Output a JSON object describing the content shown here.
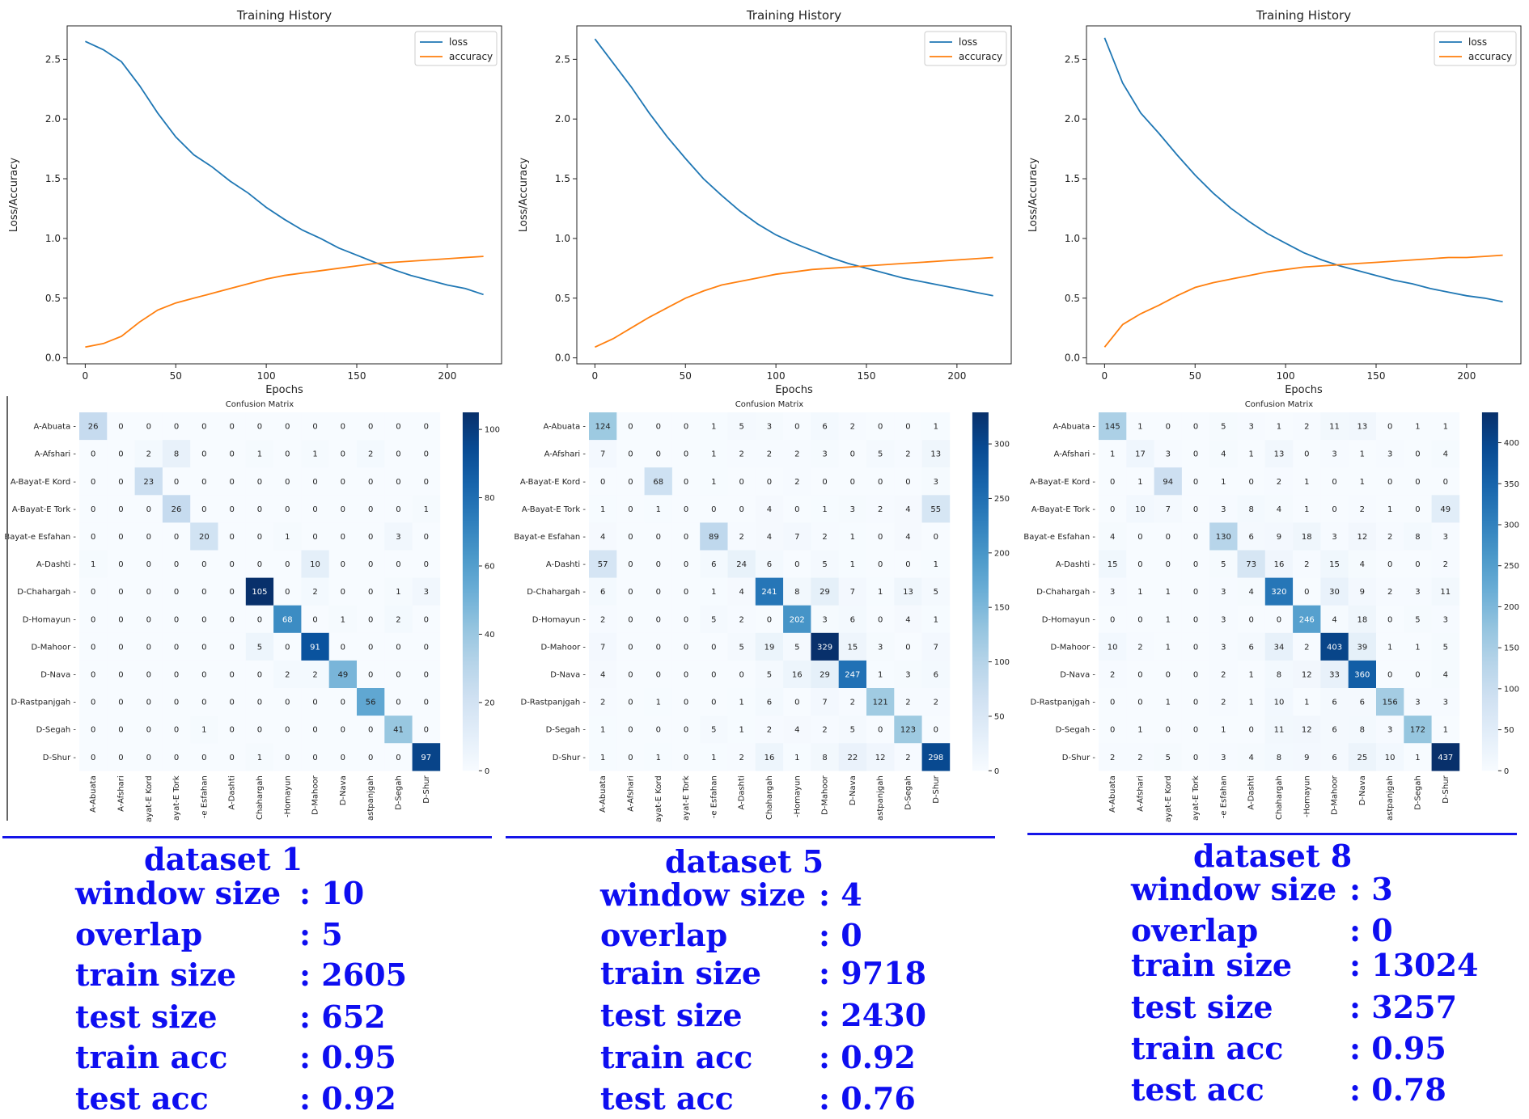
{
  "chart_data": [
    {
      "type": "line",
      "title": "Training History",
      "xlabel": "Epochs",
      "ylabel": "Loss/Accuracy",
      "xlim": [
        -10,
        230
      ],
      "ylim": [
        -0.05,
        2.78
      ],
      "xticks": [
        0,
        50,
        100,
        150,
        200
      ],
      "yticks": [
        0.0,
        0.5,
        1.0,
        1.5,
        2.0,
        2.5
      ],
      "legend": "top-right",
      "colors": [
        "#1f77b4",
        "#ff7f0e"
      ],
      "series": [
        {
          "name": "loss",
          "x": [
            0,
            10,
            20,
            30,
            40,
            50,
            60,
            70,
            80,
            90,
            100,
            110,
            120,
            130,
            140,
            150,
            160,
            170,
            180,
            190,
            200,
            210,
            220
          ],
          "values": [
            2.65,
            2.58,
            2.48,
            2.28,
            2.05,
            1.85,
            1.7,
            1.6,
            1.48,
            1.38,
            1.26,
            1.16,
            1.07,
            1.0,
            0.92,
            0.86,
            0.8,
            0.74,
            0.69,
            0.65,
            0.61,
            0.58,
            0.53
          ]
        },
        {
          "name": "accuracy",
          "x": [
            0,
            10,
            20,
            30,
            40,
            50,
            60,
            70,
            80,
            90,
            100,
            110,
            120,
            130,
            140,
            150,
            160,
            170,
            180,
            190,
            200,
            210,
            220
          ],
          "values": [
            0.09,
            0.12,
            0.18,
            0.3,
            0.4,
            0.46,
            0.5,
            0.54,
            0.58,
            0.62,
            0.66,
            0.69,
            0.71,
            0.73,
            0.75,
            0.77,
            0.79,
            0.8,
            0.81,
            0.82,
            0.83,
            0.84,
            0.85
          ]
        }
      ]
    },
    {
      "type": "heatmap",
      "title": "Confusion Matrix",
      "labels": [
        "A-Abuata",
        "A-Afshari",
        "A-Bayat-E Kord",
        "A-Bayat-E Tork",
        "Bayat-e Esfahan",
        "A-Dashti",
        "D-Chahargah",
        "D-Homayun",
        "D-Mahoor",
        "D-Nava",
        "D-Rastpanjgah",
        "D-Segah",
        "D-Shur"
      ],
      "x_tick_labels": [
        "A-Abuata",
        "A-Afshari",
        "ayat-E Kord",
        "ayat-E Tork",
        "-e Esfahan",
        "A-Dashti",
        "Chahargah",
        "-Homayun",
        "D-Mahoor",
        "D-Nava",
        "astpanjgah",
        "D-Segah",
        "D-Shur"
      ],
      "colorbar_ticks": [
        0,
        20,
        40,
        60,
        80,
        100
      ],
      "vmax": 105,
      "matrix": [
        [
          26,
          0,
          0,
          0,
          0,
          0,
          0,
          0,
          0,
          0,
          0,
          0,
          0
        ],
        [
          0,
          0,
          2,
          8,
          0,
          0,
          1,
          0,
          1,
          0,
          2,
          0,
          0
        ],
        [
          0,
          0,
          23,
          0,
          0,
          0,
          0,
          0,
          0,
          0,
          0,
          0,
          0
        ],
        [
          0,
          0,
          0,
          26,
          0,
          0,
          0,
          0,
          0,
          0,
          0,
          0,
          1
        ],
        [
          0,
          0,
          0,
          0,
          20,
          0,
          0,
          1,
          0,
          0,
          0,
          3,
          0
        ],
        [
          1,
          0,
          0,
          0,
          0,
          0,
          0,
          0,
          10,
          0,
          0,
          0,
          0
        ],
        [
          0,
          0,
          0,
          0,
          0,
          0,
          105,
          0,
          2,
          0,
          0,
          1,
          3
        ],
        [
          0,
          0,
          0,
          0,
          0,
          0,
          0,
          68,
          0,
          1,
          0,
          2,
          0
        ],
        [
          0,
          0,
          0,
          0,
          0,
          0,
          5,
          0,
          91,
          0,
          0,
          0,
          0
        ],
        [
          0,
          0,
          0,
          0,
          0,
          0,
          0,
          2,
          2,
          49,
          0,
          0,
          0
        ],
        [
          0,
          0,
          0,
          0,
          0,
          0,
          0,
          0,
          0,
          0,
          56,
          0,
          0
        ],
        [
          0,
          0,
          0,
          0,
          1,
          0,
          0,
          0,
          0,
          0,
          0,
          41,
          0
        ],
        [
          0,
          0,
          0,
          0,
          0,
          0,
          1,
          0,
          0,
          0,
          0,
          0,
          97
        ]
      ]
    },
    {
      "type": "line",
      "title": "Training History",
      "xlabel": "Epochs",
      "ylabel": "Loss/Accuracy",
      "xlim": [
        -10,
        230
      ],
      "ylim": [
        -0.05,
        2.78
      ],
      "xticks": [
        0,
        50,
        100,
        150,
        200
      ],
      "yticks": [
        0.0,
        0.5,
        1.0,
        1.5,
        2.0,
        2.5
      ],
      "legend": "top-right",
      "colors": [
        "#1f77b4",
        "#ff7f0e"
      ],
      "series": [
        {
          "name": "loss",
          "x": [
            0,
            10,
            20,
            30,
            40,
            50,
            60,
            70,
            80,
            90,
            100,
            110,
            120,
            130,
            140,
            150,
            160,
            170,
            180,
            190,
            200,
            210,
            220
          ],
          "values": [
            2.67,
            2.47,
            2.27,
            2.05,
            1.85,
            1.67,
            1.5,
            1.36,
            1.23,
            1.12,
            1.03,
            0.96,
            0.9,
            0.84,
            0.79,
            0.75,
            0.71,
            0.67,
            0.64,
            0.61,
            0.58,
            0.55,
            0.52
          ]
        },
        {
          "name": "accuracy",
          "x": [
            0,
            10,
            20,
            30,
            40,
            50,
            60,
            70,
            80,
            90,
            100,
            110,
            120,
            130,
            140,
            150,
            160,
            170,
            180,
            190,
            200,
            210,
            220
          ],
          "values": [
            0.09,
            0.16,
            0.25,
            0.34,
            0.42,
            0.5,
            0.56,
            0.61,
            0.64,
            0.67,
            0.7,
            0.72,
            0.74,
            0.75,
            0.76,
            0.77,
            0.78,
            0.79,
            0.8,
            0.81,
            0.82,
            0.83,
            0.84
          ]
        }
      ]
    },
    {
      "type": "heatmap",
      "title": "Confusion Matrix",
      "labels": [
        "A-Abuata",
        "A-Afshari",
        "A-Bayat-E Kord",
        "A-Bayat-E Tork",
        "Bayat-e Esfahan",
        "A-Dashti",
        "D-Chahargah",
        "D-Homayun",
        "D-Mahoor",
        "D-Nava",
        "D-Rastpanjgah",
        "D-Segah",
        "D-Shur"
      ],
      "x_tick_labels": [
        "A-Abuata",
        "A-Afshari",
        "ayat-E Kord",
        "ayat-E Tork",
        "-e Esfahan",
        "A-Dashti",
        "Chahargah",
        "-Homayun",
        "D-Mahoor",
        "D-Nava",
        "astpanjgah",
        "D-Segah",
        "D-Shur"
      ],
      "colorbar_ticks": [
        0,
        50,
        100,
        150,
        200,
        250,
        300
      ],
      "vmax": 329,
      "matrix": [
        [
          124,
          0,
          0,
          0,
          1,
          5,
          3,
          0,
          6,
          2,
          0,
          0,
          1
        ],
        [
          7,
          0,
          0,
          0,
          1,
          2,
          2,
          2,
          3,
          0,
          5,
          2,
          13
        ],
        [
          0,
          0,
          68,
          0,
          1,
          0,
          0,
          2,
          0,
          0,
          0,
          0,
          3
        ],
        [
          1,
          0,
          1,
          0,
          0,
          0,
          4,
          0,
          1,
          3,
          2,
          4,
          55
        ],
        [
          4,
          0,
          0,
          0,
          89,
          2,
          4,
          7,
          2,
          1,
          0,
          4,
          0
        ],
        [
          57,
          0,
          0,
          0,
          6,
          24,
          6,
          0,
          5,
          1,
          0,
          0,
          1
        ],
        [
          6,
          0,
          0,
          0,
          1,
          4,
          241,
          8,
          29,
          7,
          1,
          13,
          5
        ],
        [
          2,
          0,
          0,
          0,
          5,
          2,
          0,
          202,
          3,
          6,
          0,
          4,
          1
        ],
        [
          7,
          0,
          0,
          0,
          0,
          5,
          19,
          5,
          329,
          15,
          3,
          0,
          7
        ],
        [
          4,
          0,
          0,
          0,
          0,
          0,
          5,
          16,
          29,
          247,
          1,
          3,
          6
        ],
        [
          2,
          0,
          1,
          0,
          0,
          1,
          6,
          0,
          7,
          2,
          121,
          2,
          2
        ],
        [
          1,
          0,
          0,
          0,
          5,
          1,
          2,
          4,
          2,
          5,
          0,
          123,
          0
        ],
        [
          1,
          0,
          1,
          0,
          1,
          2,
          16,
          1,
          8,
          22,
          12,
          2,
          298
        ]
      ]
    },
    {
      "type": "line",
      "title": "Training History",
      "xlabel": "Epochs",
      "ylabel": "Loss/Accuracy",
      "xlim": [
        -10,
        230
      ],
      "ylim": [
        -0.05,
        2.78
      ],
      "xticks": [
        0,
        50,
        100,
        150,
        200
      ],
      "yticks": [
        0.0,
        0.5,
        1.0,
        1.5,
        2.0,
        2.5
      ],
      "legend": "top-right",
      "colors": [
        "#1f77b4",
        "#ff7f0e"
      ],
      "series": [
        {
          "name": "loss",
          "x": [
            0,
            10,
            20,
            30,
            40,
            50,
            60,
            70,
            80,
            90,
            100,
            110,
            120,
            130,
            140,
            150,
            160,
            170,
            180,
            190,
            200,
            210,
            220
          ],
          "values": [
            2.68,
            2.3,
            2.05,
            1.88,
            1.7,
            1.53,
            1.38,
            1.25,
            1.14,
            1.04,
            0.96,
            0.88,
            0.82,
            0.77,
            0.73,
            0.69,
            0.65,
            0.62,
            0.58,
            0.55,
            0.52,
            0.5,
            0.47
          ]
        },
        {
          "name": "accuracy",
          "x": [
            0,
            10,
            20,
            30,
            40,
            50,
            60,
            70,
            80,
            90,
            100,
            110,
            120,
            130,
            140,
            150,
            160,
            170,
            180,
            190,
            200,
            210,
            220
          ],
          "values": [
            0.09,
            0.28,
            0.37,
            0.44,
            0.52,
            0.59,
            0.63,
            0.66,
            0.69,
            0.72,
            0.74,
            0.76,
            0.77,
            0.78,
            0.79,
            0.8,
            0.81,
            0.82,
            0.83,
            0.84,
            0.84,
            0.85,
            0.86
          ]
        }
      ]
    },
    {
      "type": "heatmap",
      "title": "Confusion Matrix",
      "labels": [
        "A-Abuata",
        "A-Afshari",
        "A-Bayat-E Kord",
        "A-Bayat-E Tork",
        "Bayat-e Esfahan",
        "A-Dashti",
        "D-Chahargah",
        "D-Homayun",
        "D-Mahoor",
        "D-Nava",
        "D-Rastpanjgah",
        "D-Segah",
        "D-Shur"
      ],
      "x_tick_labels": [
        "A-Abuata",
        "A-Afshari",
        "ayat-E Kord",
        "ayat-E Tork",
        "-e Esfahan",
        "A-Dashti",
        "Chahargah",
        "-Homayun",
        "D-Mahoor",
        "D-Nava",
        "astpanjgah",
        "D-Segah",
        "D-Shur"
      ],
      "colorbar_ticks": [
        0,
        50,
        100,
        150,
        200,
        250,
        300,
        350,
        400
      ],
      "vmax": 437,
      "matrix": [
        [
          145,
          1,
          0,
          0,
          5,
          3,
          1,
          2,
          11,
          13,
          0,
          1,
          1
        ],
        [
          1,
          17,
          3,
          0,
          4,
          1,
          13,
          0,
          3,
          1,
          3,
          0,
          4
        ],
        [
          0,
          1,
          94,
          0,
          1,
          0,
          2,
          1,
          0,
          1,
          0,
          0,
          0
        ],
        [
          0,
          10,
          7,
          0,
          3,
          8,
          4,
          1,
          0,
          2,
          1,
          0,
          49
        ],
        [
          4,
          0,
          0,
          0,
          130,
          6,
          9,
          18,
          3,
          12,
          2,
          8,
          3
        ],
        [
          15,
          0,
          0,
          0,
          5,
          73,
          16,
          2,
          15,
          4,
          0,
          0,
          2
        ],
        [
          3,
          1,
          1,
          0,
          3,
          4,
          320,
          0,
          30,
          9,
          2,
          3,
          11
        ],
        [
          0,
          0,
          1,
          0,
          3,
          0,
          0,
          246,
          4,
          18,
          0,
          5,
          3
        ],
        [
          10,
          2,
          1,
          0,
          3,
          6,
          34,
          2,
          403,
          39,
          1,
          1,
          5
        ],
        [
          2,
          0,
          0,
          0,
          2,
          1,
          8,
          12,
          33,
          360,
          0,
          0,
          4
        ],
        [
          0,
          0,
          1,
          0,
          2,
          1,
          10,
          1,
          6,
          6,
          156,
          3,
          3
        ],
        [
          0,
          1,
          0,
          0,
          1,
          0,
          11,
          12,
          6,
          8,
          3,
          172,
          1
        ],
        [
          2,
          2,
          5,
          0,
          3,
          4,
          8,
          9,
          6,
          25,
          10,
          1,
          437
        ]
      ]
    }
  ],
  "datasets": [
    {
      "title": "dataset  1",
      "rows": [
        {
          "key": "window  size",
          "value": ":  10"
        },
        {
          "key": "overlap",
          "value": ":  5"
        },
        {
          "key": "train  size",
          "value": ":  2605"
        },
        {
          "key": "test  size",
          "value": ":  652"
        },
        {
          "key": "train  acc",
          "value": ":  0.95"
        },
        {
          "key": "test    acc",
          "value": ":  0.92"
        }
      ]
    },
    {
      "title": "dataset 5",
      "rows": [
        {
          "key": "window  size",
          "value": ":  4"
        },
        {
          "key": "overlap",
          "value": ":  0"
        },
        {
          "key": "train  size",
          "value": ":  9718"
        },
        {
          "key": "test  size",
          "value": ":  2430"
        },
        {
          "key": "train  acc",
          "value": ":  0.92"
        },
        {
          "key": "test    acc",
          "value": ":  0.76"
        }
      ]
    },
    {
      "title": "dataset 8",
      "rows": [
        {
          "key": "window  size",
          "value": ":  3"
        },
        {
          "key": "overlap",
          "value": ":  0"
        },
        {
          "key": "train  size",
          "value": ":  13024"
        },
        {
          "key": "test  size",
          "value": ":  3257"
        },
        {
          "key": "train  acc",
          "value": ":  0.95"
        },
        {
          "key": "test    acc",
          "value": ":  0.78"
        }
      ]
    }
  ]
}
